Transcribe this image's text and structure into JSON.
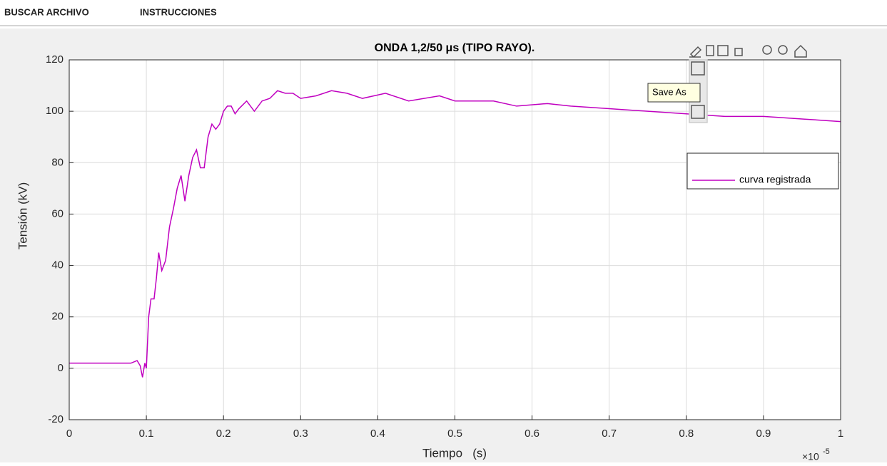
{
  "menu": [
    "BUSCAR ARCHIVO",
    "INSTRUCCIONES"
  ],
  "tooltip": "Save As",
  "chart_data": {
    "type": "line",
    "title": "ONDA 1,2/50 μs (TIPO RAYO).",
    "x_label": "Tiempo   (s)",
    "y_label": "Tensión  (kV)",
    "x_offset_text": {
      "base": "×10",
      "exponent": "-5"
    },
    "xlim": [
      0,
      1
    ],
    "xticks": [
      0,
      0.1,
      0.2,
      0.3,
      0.4,
      0.5,
      0.6,
      0.7,
      0.8,
      0.9,
      1
    ],
    "ylim": [
      -20,
      120
    ],
    "yticks": [
      -20,
      0,
      20,
      40,
      60,
      80,
      100,
      120
    ],
    "grid": true,
    "legend": "upper right",
    "series": [
      {
        "name": "curva registrada",
        "color": "#c000c0",
        "x": [
          0,
          0.05,
          0.08,
          0.088,
          0.092,
          0.095,
          0.098,
          0.1,
          0.103,
          0.106,
          0.11,
          0.113,
          0.116,
          0.12,
          0.125,
          0.13,
          0.135,
          0.14,
          0.145,
          0.15,
          0.155,
          0.16,
          0.165,
          0.17,
          0.175,
          0.18,
          0.185,
          0.19,
          0.195,
          0.2,
          0.205,
          0.21,
          0.215,
          0.22,
          0.23,
          0.24,
          0.25,
          0.26,
          0.27,
          0.28,
          0.29,
          0.3,
          0.32,
          0.34,
          0.36,
          0.38,
          0.41,
          0.44,
          0.48,
          0.5,
          0.55,
          0.58,
          0.62,
          0.65,
          0.7,
          0.75,
          0.8,
          0.85,
          0.9,
          0.95,
          1.0
        ],
        "values": [
          2,
          2,
          2,
          3,
          1,
          -3.5,
          2,
          0,
          20,
          27,
          27,
          35,
          45,
          38,
          42,
          55,
          62,
          70,
          75,
          65,
          75,
          82,
          85,
          78,
          78,
          90,
          95,
          93,
          95,
          100,
          102,
          102,
          99,
          101,
          104,
          100,
          104,
          105,
          108,
          107,
          107,
          105,
          106,
          108,
          107,
          105,
          107,
          104,
          106,
          104,
          104,
          102,
          103,
          102,
          101,
          100,
          99,
          98,
          98,
          97,
          96
        ]
      }
    ]
  }
}
